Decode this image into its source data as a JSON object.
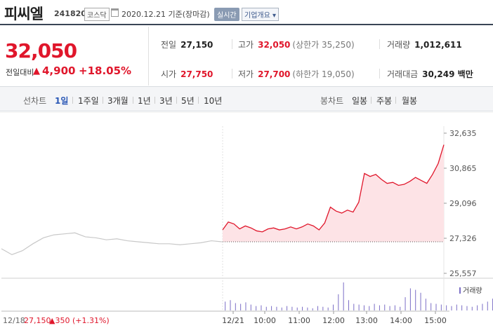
{
  "stock": {
    "name": "피씨엘",
    "code": "241820",
    "market": "코스닥",
    "date_text": "2020.12.21 기준(장마감)",
    "realtime_label": "실시간",
    "overview_label": "기업개요 ▾"
  },
  "price": {
    "current": "32,050",
    "prev_label": "전일대비",
    "change": "4,900",
    "change_pct": "+18.05%"
  },
  "quotes": {
    "prev_close": {
      "label": "전일",
      "value": "27,150"
    },
    "high": {
      "label": "고가",
      "value": "32,050",
      "sub": "(상한가 35,250)"
    },
    "volume": {
      "label": "거래량",
      "value": "1,012,611"
    },
    "open": {
      "label": "시가",
      "value": "27,750"
    },
    "low": {
      "label": "저가",
      "value": "27,700",
      "sub": "(하한가 19,050)"
    },
    "trade_value": {
      "label": "거래대금",
      "value": "30,249 백만"
    }
  },
  "toolbar": {
    "line_chart_label": "선차트",
    "periods": [
      "1일",
      "1주일",
      "3개월",
      "1년",
      "3년",
      "5년",
      "10년"
    ],
    "active_period": "1일",
    "candle_label": "봉차트",
    "candle_periods": [
      "일봉",
      "주봉",
      "월봉"
    ]
  },
  "chart_labels": {
    "volume_legend": "거래량",
    "prev_day_label": "12/18",
    "prev_day_price": "27,150",
    "prev_day_change": "▲350 (+1.31%)"
  },
  "colors": {
    "up_red": "#e0162b",
    "prev_line": "#c8c8c8",
    "accent_blue": "#2a58b6"
  },
  "chart_data": {
    "type": "line",
    "title": "",
    "x_ticks": [
      "12/21",
      "10:00",
      "11:00",
      "12:00",
      "13:00",
      "14:00",
      "15:00"
    ],
    "y_ticks": [
      32635,
      30865,
      29096,
      27326,
      25557
    ],
    "y_tick_labels": [
      "32,635",
      "30,865",
      "29,096",
      "27,326",
      "25,557"
    ],
    "ylim": [
      25557,
      32635
    ],
    "reference_price": 27150,
    "series": [
      {
        "prev_day": true,
        "values": [
          26800,
          26500,
          26700,
          27050,
          27350,
          27500,
          27550,
          27600,
          27400,
          27350,
          27250,
          27300,
          27200,
          27150,
          27100,
          27050,
          27050,
          27000,
          27050,
          27100,
          27200,
          27150
        ]
      },
      {
        "prev_day": false,
        "times": [
          "09:00",
          "09:10",
          "09:20",
          "09:30",
          "09:40",
          "09:50",
          "10:00",
          "10:10",
          "10:20",
          "10:30",
          "10:40",
          "10:50",
          "11:00",
          "11:10",
          "11:20",
          "11:30",
          "11:40",
          "11:50",
          "12:00",
          "12:10",
          "12:20",
          "12:30",
          "12:40",
          "12:50",
          "13:00",
          "13:10",
          "13:20",
          "13:30",
          "13:40",
          "13:50",
          "14:00",
          "14:10",
          "14:20",
          "14:30",
          "14:40",
          "14:50",
          "15:00",
          "15:10",
          "15:20",
          "15:30"
        ],
        "values": [
          27750,
          28150,
          28050,
          27800,
          27950,
          27850,
          27700,
          27650,
          27800,
          27850,
          27750,
          27800,
          27900,
          27800,
          27900,
          28050,
          27950,
          27750,
          28100,
          28900,
          28700,
          28600,
          28750,
          28650,
          29150,
          30600,
          30450,
          30550,
          30300,
          30100,
          30150,
          30000,
          30050,
          30200,
          30400,
          30250,
          30100,
          30550,
          31100,
          32050
        ]
      }
    ],
    "volume": [
      0,
      0,
      0,
      0,
      0,
      0,
      0,
      0,
      0,
      0,
      0,
      0,
      0,
      0,
      0,
      0,
      0,
      0,
      0,
      0,
      0,
      0,
      0,
      0,
      0,
      0,
      0,
      0,
      0,
      0,
      0,
      12,
      14,
      10,
      9,
      11,
      8,
      6,
      7,
      5,
      6,
      5,
      4,
      6,
      5,
      4,
      5,
      4,
      3,
      6,
      5,
      4,
      8,
      22,
      38,
      14,
      9,
      8,
      7,
      6,
      9,
      7,
      8,
      6,
      7,
      5,
      18,
      30,
      28,
      24,
      16,
      10,
      9,
      8,
      7,
      6,
      8,
      7,
      6,
      5,
      7,
      9,
      12,
      16,
      22,
      30
    ]
  }
}
